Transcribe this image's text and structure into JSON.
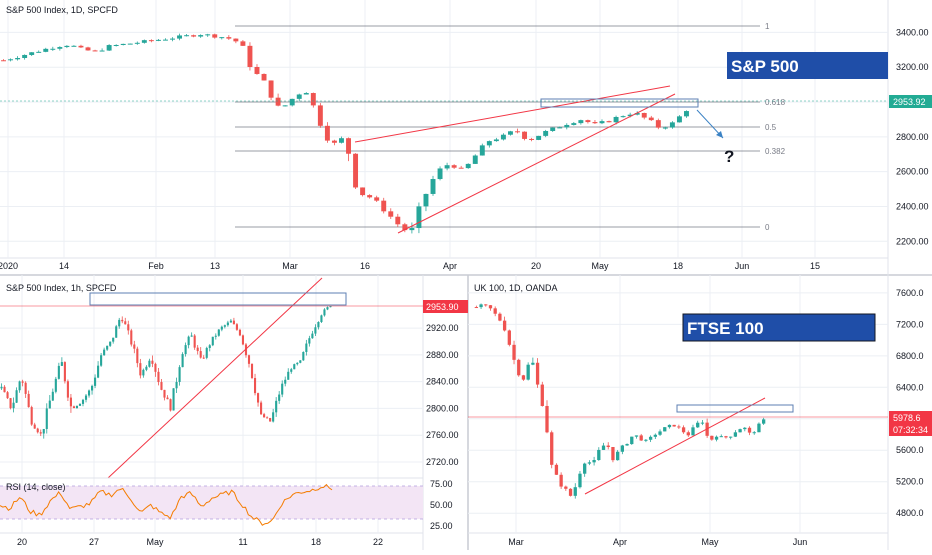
{
  "colors": {
    "up": "#26a69a",
    "down": "#ef5350",
    "trend": "#f23645",
    "fib_line": "#787b86",
    "price_tag": "#f23645",
    "sp_price_tag": "#22ab94",
    "banner_bg": "#1f4ea8",
    "rsi_line": "#f57c00",
    "rsi_band": "#f3e5f5",
    "grid": "#eceff4",
    "axis_text": "#131722"
  },
  "top_panel": {
    "title": "S&P 500 Index, 1D, SPCFD",
    "banner": "S&P 500",
    "last_price": "2953.92",
    "question_mark": "?",
    "y_ticks": [
      "3400.00",
      "3200.00",
      "3000.00",
      "2800.00",
      "2600.00",
      "2400.00",
      "2200.00"
    ],
    "x_ticks": [
      "2020",
      "14",
      "Feb",
      "13",
      "Mar",
      "16",
      "Apr",
      "20",
      "May",
      "18",
      "Jun",
      "15"
    ],
    "fib_labels": [
      "1",
      "0.618",
      "0.5",
      "0.382",
      "0"
    ]
  },
  "bottom_left_panel": {
    "title": "S&P 500 Index, 1h, SPCFD",
    "last_price": "2953.90",
    "y_ticks": [
      "2920.00",
      "2880.00",
      "2840.00",
      "2800.00",
      "2760.00",
      "2720.00"
    ],
    "x_ticks": [
      "20",
      "27",
      "May",
      "11",
      "18",
      "22"
    ],
    "rsi_label": "RSI (14, close)",
    "rsi_ticks": [
      "75.00",
      "50.00",
      "25.00"
    ]
  },
  "bottom_right_panel": {
    "title": "UK 100, 1D, OANDA",
    "banner": "FTSE 100",
    "last_price": "5978.6",
    "countdown": "07:32:34",
    "y_ticks": [
      "7600.0",
      "7200.0",
      "6800.0",
      "6400.0",
      "6000.0",
      "5600.0",
      "5200.0",
      "4800.0"
    ],
    "x_ticks": [
      "Mar",
      "Apr",
      "May",
      "Jun"
    ]
  },
  "chart_data": [
    {
      "type": "candlestick",
      "title": "S&P 500 Index, 1D, SPCFD",
      "ylim": [
        2150,
        3500
      ],
      "x": [
        "2020-01-02",
        "2020-01-14",
        "2020-02-01",
        "2020-02-13",
        "2020-03-01",
        "2020-03-16",
        "2020-04-01",
        "2020-04-20",
        "2020-05-01",
        "2020-05-18",
        "2020-06-01",
        "2020-06-15"
      ],
      "close_path": [
        3240,
        3260,
        3280,
        3300,
        3320,
        3330,
        3300,
        3290,
        3320,
        3330,
        3340,
        3350,
        3360,
        3370,
        3380,
        3390,
        3380,
        3370,
        3340,
        3180,
        3100,
        2950,
        3020,
        3080,
        2900,
        2750,
        2800,
        2480,
        2450,
        2380,
        2300,
        2240,
        2450,
        2600,
        2650,
        2600,
        2700,
        2780,
        2800,
        2840,
        2780,
        2820,
        2850,
        2880,
        2900,
        2870,
        2890,
        2920,
        2940,
        2900,
        2850,
        2880,
        2954
      ],
      "fibonacci_levels": [
        {
          "level": "1",
          "value": 3393
        },
        {
          "level": "0.618",
          "value": 2954
        },
        {
          "level": "0.5",
          "value": 2818
        },
        {
          "level": "0.382",
          "value": 2682
        },
        {
          "level": "0",
          "value": 2192
        }
      ],
      "last": 2953.92
    },
    {
      "type": "candlestick",
      "title": "S&P 500 Index, 1h, SPCFD",
      "ylim": [
        2705,
        2965
      ],
      "x": [
        "20",
        "27",
        "May",
        "11",
        "18",
        "22"
      ],
      "close_path": [
        2830,
        2800,
        2850,
        2780,
        2760,
        2820,
        2870,
        2800,
        2810,
        2830,
        2880,
        2900,
        2940,
        2900,
        2850,
        2880,
        2830,
        2800,
        2880,
        2910,
        2870,
        2900,
        2920,
        2930,
        2910,
        2860,
        2790,
        2780,
        2830,
        2860,
        2870,
        2910,
        2940,
        2954
      ],
      "last": 2953.9,
      "rsi": {
        "name": "RSI (14, close)",
        "ylim": [
          20,
          80
        ],
        "bands": [
          30,
          70
        ],
        "values": [
          50,
          46,
          60,
          42,
          38,
          55,
          65,
          45,
          48,
          52,
          66,
          62,
          70,
          58,
          40,
          50,
          40,
          35,
          60,
          64,
          48,
          58,
          62,
          66,
          52,
          36,
          28,
          30,
          52,
          62,
          66,
          68,
          73,
          70
        ]
      }
    },
    {
      "type": "candlestick",
      "title": "UK 100, 1D, OANDA",
      "ylim": [
        4650,
        7700
      ],
      "x": [
        "Mar",
        "Apr",
        "May",
        "Jun"
      ],
      "close_path": [
        7420,
        7440,
        7400,
        7300,
        7200,
        6900,
        6600,
        6500,
        6800,
        6400,
        6100,
        5400,
        5200,
        5100,
        5000,
        5300,
        5500,
        5400,
        5600,
        5700,
        5500,
        5600,
        5700,
        5800,
        5750,
        5700,
        5800,
        5850,
        5900,
        5920,
        5850,
        5800,
        5900,
        6000,
        5700,
        5800,
        5750,
        5780,
        5850,
        5900,
        5800,
        5880,
        5979
      ],
      "last": 5978.6
    }
  ]
}
